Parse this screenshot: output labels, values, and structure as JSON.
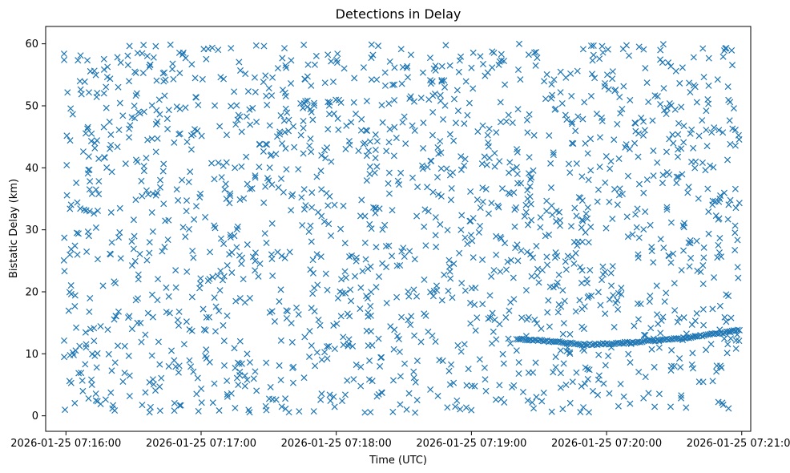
{
  "chart_data": {
    "type": "scatter",
    "title": "Detections in Delay",
    "xlabel": "Time (UTC)",
    "ylabel": "Bistatic Delay (km)",
    "xlim": [
      "2026-01-25 07:15:51",
      "2026-01-25 07:21:04"
    ],
    "ylim": [
      -2.5,
      62.8
    ],
    "x_ticks": [
      "2026-01-25 07:16:00",
      "2026-01-25 07:17:00",
      "2026-01-25 07:18:00",
      "2026-01-25 07:19:00",
      "2026-01-25 07:20:00",
      "2026-01-25 07:21:00"
    ],
    "y_ticks": [
      0,
      10,
      20,
      30,
      40,
      50,
      60
    ],
    "grid": false,
    "marker": "x",
    "color": "#1f77b4",
    "series": [
      {
        "description_points": "clutter",
        "x_range": [
          "2026-01-25 07:15:59",
          "2026-01-25 07:20:59"
        ],
        "y_range": [
          0.5,
          60
        ],
        "count": 1700
      },
      {
        "points": [
          {
            "x": "2026-01-25 07:19:20",
            "y": 12.4
          },
          {
            "x": "2026-01-25 07:19:28",
            "y": 12.2
          },
          {
            "x": "2026-01-25 07:19:36",
            "y": 12.0
          },
          {
            "x": "2026-01-25 07:19:44",
            "y": 11.7
          },
          {
            "x": "2026-01-25 07:19:50",
            "y": 11.5
          },
          {
            "x": "2026-01-25 07:20:01",
            "y": 11.6
          },
          {
            "x": "2026-01-25 07:20:10",
            "y": 11.8
          },
          {
            "x": "2026-01-25 07:20:20",
            "y": 12.1
          },
          {
            "x": "2026-01-25 07:20:30",
            "y": 12.4
          },
          {
            "x": "2026-01-25 07:20:40",
            "y": 12.8
          },
          {
            "x": "2026-01-25 07:20:50",
            "y": 13.3
          },
          {
            "x": "2026-01-25 07:20:59",
            "y": 13.8
          }
        ]
      }
    ]
  }
}
